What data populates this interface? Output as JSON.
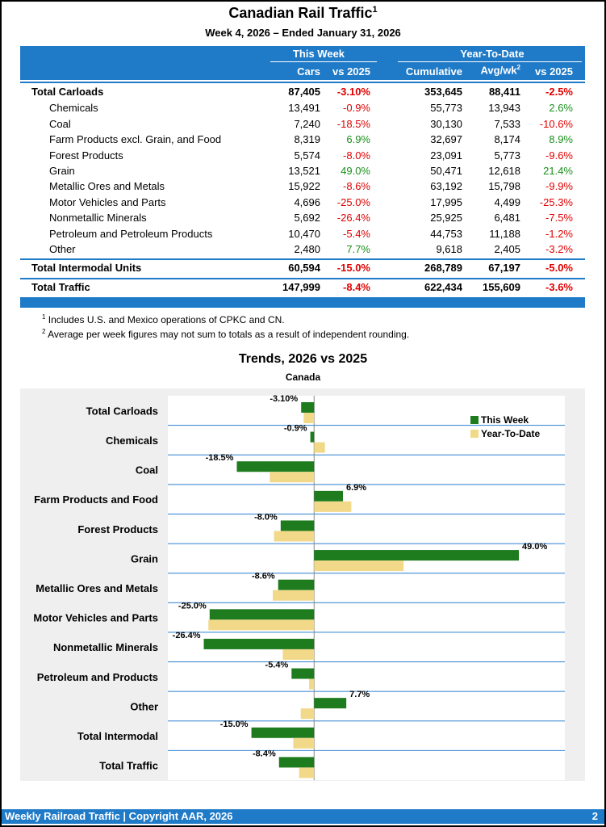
{
  "header": {
    "title": "Canadian Rail Traffic",
    "title_sup": "1",
    "subtitle": "Week 4, 2026 – Ended January 31, 2026"
  },
  "table": {
    "group_this_week": "This Week",
    "group_ytd": "Year-To-Date",
    "col_cars": "Cars",
    "col_vs_week": "vs 2025",
    "col_cumulative": "Cumulative",
    "col_avg": "Avg/wk",
    "col_avg_sup": "2",
    "col_vs_ytd": "vs 2025",
    "rows": [
      {
        "label": "Total Carloads",
        "cars": "87,405",
        "vs": "-3.10%",
        "cum": "353,645",
        "avg": "88,411",
        "vsy": "-2.5%",
        "total": true
      },
      {
        "label": "Chemicals",
        "cars": "13,491",
        "vs": "-0.9%",
        "cum": "55,773",
        "avg": "13,943",
        "vsy": "2.6%"
      },
      {
        "label": "Coal",
        "cars": "7,240",
        "vs": "-18.5%",
        "cum": "30,130",
        "avg": "7,533",
        "vsy": "-10.6%"
      },
      {
        "label": "Farm Products excl. Grain, and Food",
        "cars": "8,319",
        "vs": "6.9%",
        "cum": "32,697",
        "avg": "8,174",
        "vsy": "8.9%"
      },
      {
        "label": "Forest Products",
        "cars": "5,574",
        "vs": "-8.0%",
        "cum": "23,091",
        "avg": "5,773",
        "vsy": "-9.6%"
      },
      {
        "label": "Grain",
        "cars": "13,521",
        "vs": "49.0%",
        "cum": "50,471",
        "avg": "12,618",
        "vsy": "21.4%"
      },
      {
        "label": "Metallic Ores and Metals",
        "cars": "15,922",
        "vs": "-8.6%",
        "cum": "63,192",
        "avg": "15,798",
        "vsy": "-9.9%"
      },
      {
        "label": "Motor Vehicles and Parts",
        "cars": "4,696",
        "vs": "-25.0%",
        "cum": "17,995",
        "avg": "4,499",
        "vsy": "-25.3%"
      },
      {
        "label": "Nonmetallic Minerals",
        "cars": "5,692",
        "vs": "-26.4%",
        "cum": "25,925",
        "avg": "6,481",
        "vsy": "-7.5%"
      },
      {
        "label": "Petroleum and Petroleum Products",
        "cars": "10,470",
        "vs": "-5.4%",
        "cum": "44,753",
        "avg": "11,188",
        "vsy": "-1.2%"
      },
      {
        "label": "Other",
        "cars": "2,480",
        "vs": "7.7%",
        "cum": "9,618",
        "avg": "2,405",
        "vsy": "-3.2%"
      },
      {
        "label": "Total Intermodal Units",
        "cars": "60,594",
        "vs": "-15.0%",
        "cum": "268,789",
        "avg": "67,197",
        "vsy": "-5.0%",
        "total": true
      },
      {
        "label": "Total Traffic",
        "cars": "147,999",
        "vs": "-8.4%",
        "cum": "622,434",
        "avg": "155,609",
        "vsy": "-3.6%",
        "total": true
      }
    ]
  },
  "footnotes": [
    {
      "sup": "1",
      "text": "Includes U.S. and Mexico operations of CPKC and CN."
    },
    {
      "sup": "2",
      "text": "Average per week figures may not sum to totals as a result of independent rounding."
    }
  ],
  "chart_data": {
    "type": "bar",
    "orientation": "horizontal",
    "title": "Trends, 2026 vs 2025",
    "subtitle": "Canada",
    "categories": [
      "Total Carloads",
      "Chemicals",
      "Coal",
      "Farm Products and Food",
      "Forest Products",
      "Grain",
      "Metallic Ores and Metals",
      "Motor Vehicles and Parts",
      "Nonmetallic Minerals",
      "Petroleum and Products",
      "Other",
      "Total Intermodal",
      "Total Traffic"
    ],
    "series": [
      {
        "name": "This Week",
        "values": [
          -3.1,
          -0.9,
          -18.5,
          6.9,
          -8.0,
          49.0,
          -8.6,
          -25.0,
          -26.4,
          -5.4,
          7.7,
          -15.0,
          -8.4
        ],
        "labels": [
          "-3.10%",
          "-0.9%",
          "-18.5%",
          "6.9%",
          "-8.0%",
          "49.0%",
          "-8.6%",
          "-25.0%",
          "-26.4%",
          "-5.4%",
          "7.7%",
          "-15.0%",
          "-8.4%"
        ],
        "color": "#1e7b1e"
      },
      {
        "name": "Year-To-Date",
        "values": [
          -2.5,
          2.6,
          -10.6,
          8.9,
          -9.6,
          21.4,
          -9.9,
          -25.3,
          -7.5,
          -1.2,
          -3.2,
          -5.0,
          -3.6
        ],
        "color": "#f2d98a"
      }
    ],
    "xlim": [
      -35,
      60
    ],
    "xticks": [
      -35,
      -25,
      -15,
      -5,
      5,
      15,
      25,
      35,
      45,
      55
    ],
    "xtick_labels": [
      "-35%",
      "-25%",
      "-15%",
      "-5%",
      "5%",
      "15%",
      "25%",
      "35%",
      "45%",
      "55%"
    ],
    "legend_position": "top-right",
    "grid": "horizontal"
  },
  "footer": {
    "left": "Weekly Railroad Traffic | Copyright AAR, 2026",
    "right": "2"
  },
  "colors": {
    "accent": "#1f7ac8",
    "negative": "#e00000",
    "positive": "#1a8f1a"
  }
}
